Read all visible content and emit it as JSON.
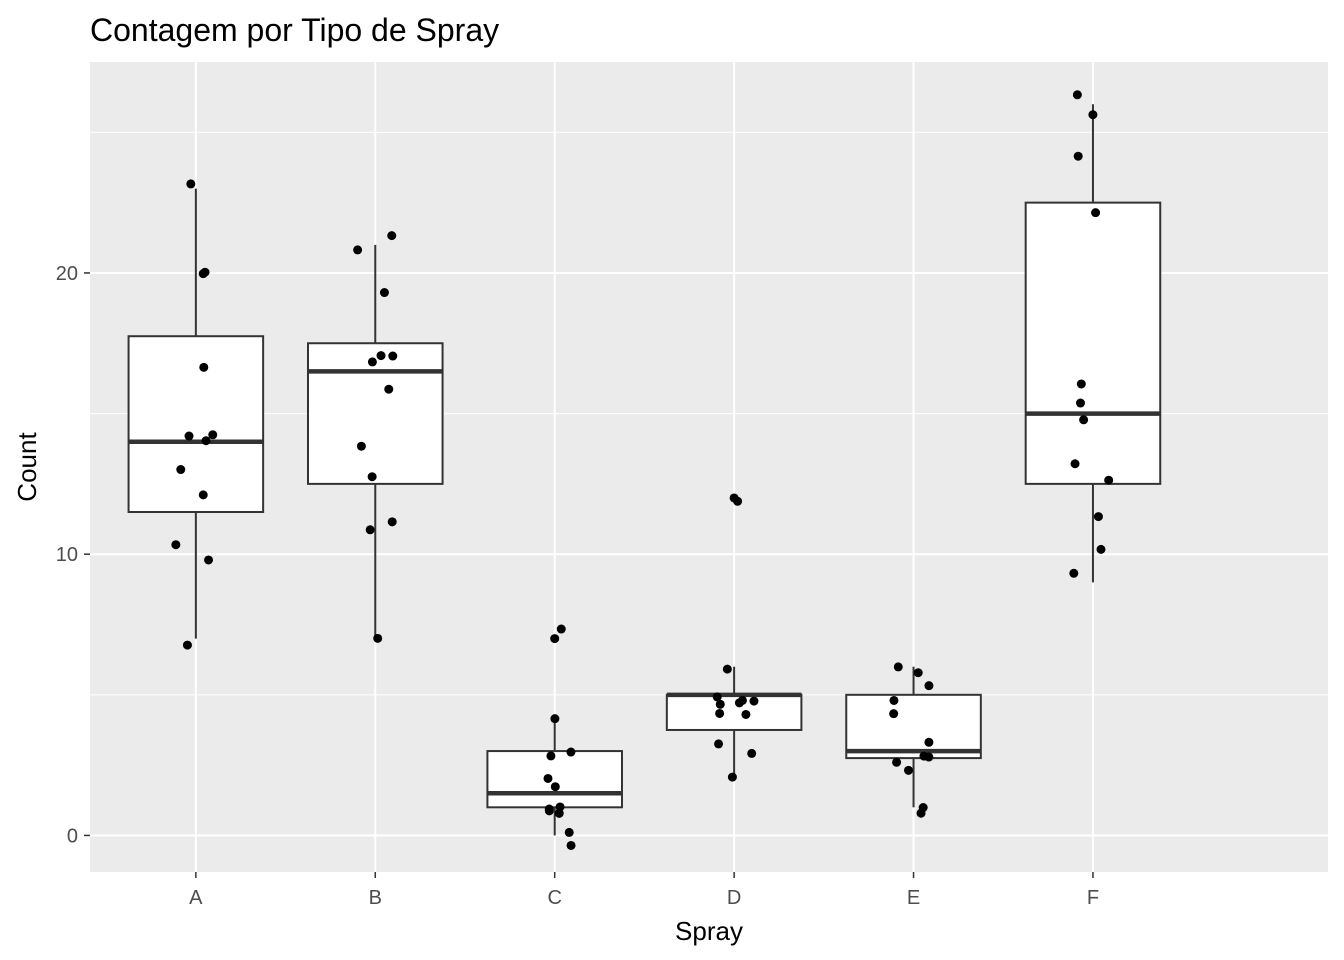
{
  "chart_data": {
    "type": "boxplot",
    "title": "Contagem por Tipo de Spray",
    "xlabel": "Spray",
    "ylabel": "Count",
    "categories": [
      "A",
      "B",
      "C",
      "D",
      "E",
      "F"
    ],
    "ylim": [
      -1.3,
      27.5
    ],
    "yticks": [
      0,
      10,
      20
    ],
    "ytick_labels": [
      "0",
      "10",
      "20"
    ],
    "grid": true,
    "panel_background": "#EBEBEB",
    "grid_color": "#FFFFFF",
    "box_fill": "#FFFFFF",
    "box_stroke": "#333333",
    "point_color": "#000000",
    "boxes": [
      {
        "category": "A",
        "lower_whisker": 7,
        "q1": 11.5,
        "median": 14,
        "q3": 17.75,
        "upper_whisker": 23
      },
      {
        "category": "B",
        "lower_whisker": 7,
        "q1": 12.5,
        "median": 16.5,
        "q3": 17.5,
        "upper_whisker": 21
      },
      {
        "category": "C",
        "lower_whisker": 0,
        "q1": 1,
        "median": 1.5,
        "q3": 3,
        "upper_whisker": 4
      },
      {
        "category": "D",
        "lower_whisker": 2,
        "q1": 3.75,
        "median": 5,
        "q3": 5,
        "upper_whisker": 6
      },
      {
        "category": "E",
        "lower_whisker": 1,
        "q1": 2.75,
        "median": 3,
        "q3": 5,
        "upper_whisker": 6
      },
      {
        "category": "F",
        "lower_whisker": 9,
        "q1": 12.5,
        "median": 15,
        "q3": 22.5,
        "upper_whisker": 26
      }
    ],
    "outliers": [
      {
        "category": "C",
        "value": 7
      },
      {
        "category": "D",
        "value": 12
      }
    ],
    "points": [
      {
        "category": "A",
        "values": [
          10,
          7,
          20,
          14,
          14,
          12,
          10,
          23,
          17,
          20,
          14,
          13
        ]
      },
      {
        "category": "B",
        "values": [
          11,
          17,
          21,
          11,
          16,
          14,
          17,
          17,
          19,
          21,
          7,
          13
        ]
      },
      {
        "category": "C",
        "values": [
          0,
          1,
          7,
          2,
          3,
          1,
          2,
          1,
          3,
          0,
          1,
          4
        ]
      },
      {
        "category": "D",
        "values": [
          3,
          5,
          12,
          6,
          4,
          3,
          5,
          5,
          5,
          5,
          2,
          4
        ]
      },
      {
        "category": "E",
        "values": [
          3,
          5,
          3,
          5,
          3,
          6,
          1,
          1,
          3,
          2,
          6,
          4
        ]
      },
      {
        "category": "F",
        "values": [
          11,
          9,
          15,
          22,
          15,
          16,
          13,
          10,
          26,
          26,
          24,
          13
        ]
      }
    ]
  }
}
